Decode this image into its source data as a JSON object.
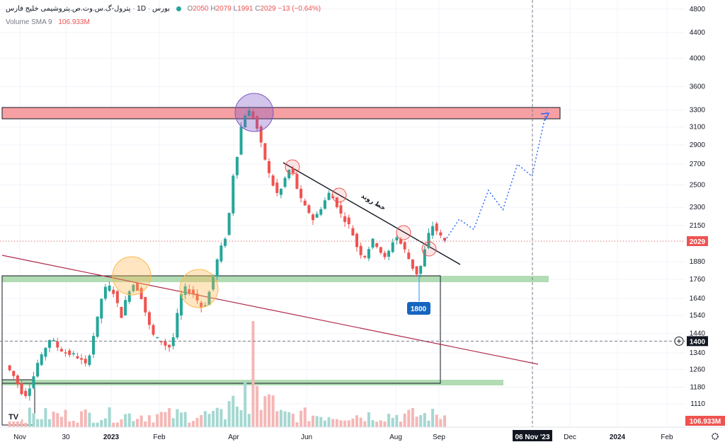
{
  "header": {
    "symbol": "پترول-گ.س.وت.ص.پتروشیمی خلیج فارس",
    "interval": "1D",
    "exchange": "بورس",
    "ohlc": {
      "o_label": "O",
      "o": "2050",
      "h_label": "H",
      "h": "2079",
      "l_label": "L",
      "l": "1991",
      "c_label": "C",
      "c": "2029",
      "change": "−13 (−0.64%)"
    }
  },
  "volume_legend": {
    "label": "Volume SMA 9",
    "value": "106.933M"
  },
  "labels": {
    "price_tag": "2029",
    "crosshair_price": "1400",
    "volume_tag": "106.933M",
    "support_tag": "1800",
    "trendline_text": "خط روند",
    "date_tag": "06 Nov '23",
    "logo": "TV"
  },
  "colors": {
    "up": "#26a69a",
    "down": "#ef5350",
    "resistance_zone": "#f7a0a4",
    "support_zone": "#a5d6a7",
    "projection": "#2962ff",
    "diagonal": "#b02a4a"
  },
  "chart_data": {
    "type": "candlestick",
    "y_ticks": [
      1110,
      1180,
      1260,
      1340,
      1400,
      1440,
      1540,
      1640,
      1760,
      1880,
      2029,
      2150,
      2300,
      2500,
      2700,
      2900,
      3100,
      3300,
      3600,
      4000,
      4400,
      4800
    ],
    "x_ticks": [
      "Nov",
      "30",
      "2023",
      "Feb",
      "Apr",
      "Jun",
      "Aug",
      "Sep",
      "06 Nov '23",
      "Dec",
      "2024",
      "Feb"
    ],
    "ylim": [
      1050,
      4900
    ],
    "log_scale": true,
    "last_price": 2029,
    "support_label": 1800,
    "price_path": [
      1280,
      1255,
      1230,
      1195,
      1160,
      1150,
      1185,
      1230,
      1290,
      1320,
      1370,
      1410,
      1395,
      1370,
      1355,
      1340,
      1335,
      1330,
      1320,
      1300,
      1280,
      1340,
      1430,
      1520,
      1640,
      1700,
      1710,
      1680,
      1600,
      1540,
      1620,
      1700,
      1730,
      1700,
      1650,
      1560,
      1480,
      1430,
      1410,
      1400,
      1380,
      1370,
      1420,
      1540,
      1660,
      1700,
      1690,
      1670,
      1630,
      1590,
      1610,
      1680,
      1790,
      1890,
      1980,
      2060,
      2250,
      2600,
      2800,
      3100,
      3250,
      3280,
      3210,
      3080,
      2900,
      2750,
      2600,
      2500,
      2420,
      2460,
      2560,
      2640,
      2600,
      2470,
      2360,
      2300,
      2260,
      2200,
      2240,
      2300,
      2360,
      2420,
      2380,
      2320,
      2240,
      2200,
      2150,
      2080,
      1990,
      1940,
      1920,
      1980,
      2030,
      2000,
      1950,
      1900,
      1950,
      2030,
      2060,
      2010,
      1960,
      1900,
      1840,
      1800,
      1850,
      1960,
      2080,
      2150,
      2110,
      2060,
      2029
    ],
    "projection_path": [
      2029,
      2200,
      2120,
      2450,
      2280,
      2700,
      2580,
      3300
    ]
  }
}
